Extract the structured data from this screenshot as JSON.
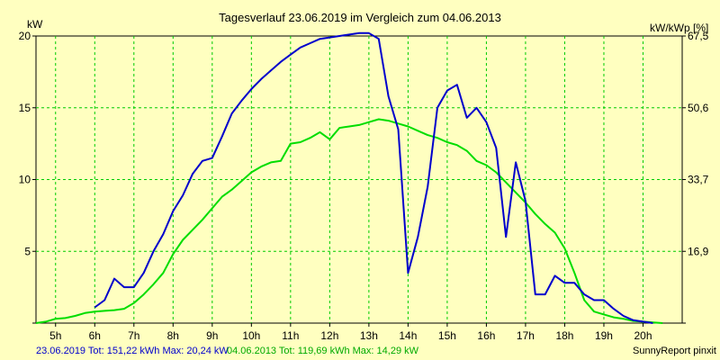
{
  "chart_data": {
    "type": "line",
    "title": "Tagesverlauf 23.06.2019 im Vergleich zum 04.06.2013",
    "ylabel": "kW",
    "ylabel_right": "kW/kWp [%]",
    "xlim": [
      4.5,
      21.0
    ],
    "ylim": [
      0,
      20
    ],
    "x_ticks": [
      5,
      6,
      7,
      8,
      9,
      10,
      11,
      12,
      13,
      14,
      15,
      16,
      17,
      18,
      19,
      20
    ],
    "x_tick_labels": [
      "5h",
      "6h",
      "7h",
      "8h",
      "9h",
      "10h",
      "11h",
      "12h",
      "13h",
      "14h",
      "15h",
      "16h",
      "17h",
      "18h",
      "19h",
      "20h"
    ],
    "y_ticks": [
      0,
      5,
      10,
      15,
      20
    ],
    "y_tick_labels": [
      "",
      "5",
      "10",
      "15",
      "20"
    ],
    "y2_ticks": [
      0,
      5,
      10,
      15,
      20
    ],
    "y2_tick_labels": [
      "",
      "16,9",
      "33,7",
      "50,6",
      "67,5"
    ],
    "grid": true,
    "series": [
      {
        "name": "23.06.2019",
        "color": "#0000cc",
        "x": [
          6.0,
          6.25,
          6.5,
          6.75,
          7.0,
          7.25,
          7.5,
          7.75,
          8.0,
          8.25,
          8.5,
          8.75,
          9.0,
          9.25,
          9.5,
          9.75,
          10.0,
          10.25,
          10.5,
          10.75,
          11.0,
          11.25,
          11.5,
          11.75,
          12.0,
          12.25,
          12.5,
          12.75,
          13.0,
          13.25,
          13.5,
          13.75,
          14.0,
          14.25,
          14.5,
          14.75,
          15.0,
          15.25,
          15.5,
          15.75,
          16.0,
          16.25,
          16.5,
          16.75,
          17.0,
          17.25,
          17.5,
          17.75,
          18.0,
          18.25,
          18.5,
          18.75,
          19.0,
          19.25,
          19.5,
          19.75,
          20.0,
          20.25
        ],
        "values": [
          1.1,
          1.6,
          3.1,
          2.5,
          2.5,
          3.5,
          5.0,
          6.2,
          7.8,
          8.9,
          10.4,
          11.3,
          11.5,
          13.0,
          14.6,
          15.5,
          16.3,
          17.0,
          17.6,
          18.2,
          18.7,
          19.2,
          19.5,
          19.8,
          19.9,
          20.0,
          20.1,
          20.2,
          20.2,
          19.8,
          15.8,
          13.5,
          3.5,
          6.0,
          9.5,
          15.0,
          16.2,
          16.6,
          14.3,
          15.0,
          14.0,
          12.2,
          6.0,
          11.2,
          8.5,
          2.0,
          2.0,
          3.3,
          2.8,
          2.8,
          2.0,
          1.6,
          1.6,
          1.0,
          0.5,
          0.2,
          0.1,
          0.0
        ]
      },
      {
        "name": "04.06.2013",
        "color": "#00dd00",
        "x": [
          4.5,
          4.75,
          5.0,
          5.25,
          5.5,
          5.75,
          6.0,
          6.25,
          6.5,
          6.75,
          7.0,
          7.25,
          7.5,
          7.75,
          8.0,
          8.25,
          8.5,
          8.75,
          9.0,
          9.25,
          9.5,
          9.75,
          10.0,
          10.25,
          10.5,
          10.75,
          11.0,
          11.25,
          11.5,
          11.75,
          12.0,
          12.25,
          12.5,
          12.75,
          13.0,
          13.25,
          13.5,
          13.75,
          14.0,
          14.25,
          14.5,
          14.75,
          15.0,
          15.25,
          15.5,
          15.75,
          16.0,
          16.25,
          16.5,
          16.75,
          17.0,
          17.25,
          17.5,
          17.75,
          18.0,
          18.25,
          18.5,
          18.75,
          19.0,
          19.25,
          19.5,
          19.75,
          20.0,
          20.25,
          20.5
        ],
        "values": [
          0.0,
          0.1,
          0.3,
          0.35,
          0.5,
          0.7,
          0.8,
          0.85,
          0.9,
          1.0,
          1.4,
          2.0,
          2.7,
          3.5,
          4.8,
          5.8,
          6.5,
          7.2,
          8.0,
          8.8,
          9.3,
          9.9,
          10.5,
          10.9,
          11.2,
          11.3,
          12.5,
          12.6,
          12.9,
          13.3,
          12.8,
          13.6,
          13.7,
          13.8,
          14.0,
          14.2,
          14.1,
          13.9,
          13.7,
          13.4,
          13.1,
          12.9,
          12.6,
          12.4,
          12.0,
          11.3,
          11.0,
          10.5,
          9.8,
          9.1,
          8.4,
          7.6,
          6.9,
          6.3,
          5.2,
          3.5,
          1.6,
          0.8,
          0.6,
          0.4,
          0.3,
          0.15,
          0.1,
          0.05,
          0.0
        ]
      }
    ]
  },
  "title_left_label": "kW",
  "title_right_label": "kW/kWp [%]",
  "footer": {
    "series1_text": "23.06.2019 Tot: 151,22 kWh Max: 20,24 kW",
    "series2_text": "04.06.2013 Tot: 119,69 kWh Max: 14,29 kW",
    "credit": "SunnyReport pinxit"
  },
  "colors": {
    "background": "#ffffc0",
    "plot_bg": "#ffffc0",
    "grid": "#00cc00",
    "series1": "#0000cc",
    "series2": "#00dd00"
  }
}
